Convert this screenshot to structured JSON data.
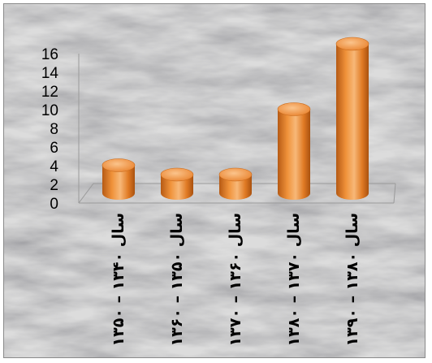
{
  "chart_data": {
    "type": "bar",
    "style": "3d-cylinder",
    "categories": [
      "سال ۱۳۴۰ – ۱۳۵۰",
      "سال ۱۳۵۰ – ۱۳۶۰",
      "سال ۱۳۶۰ – ۱۳۷۰",
      "سال ۱۳۷۰ – ۱۳۸۰",
      "سال ۱۳۸۰ – ۱۳۹۰"
    ],
    "values": [
      3,
      2,
      2,
      9,
      16
    ],
    "ylim": [
      0,
      16
    ],
    "yticks": [
      "0",
      "2",
      "4",
      "6",
      "8",
      "10",
      "12",
      "14",
      "16"
    ],
    "grid": false,
    "legend": "none",
    "colors": {
      "bar": "#e8802a",
      "bar_light": "#f7b878",
      "bar_dark": "#b65a14",
      "background": "#d9d9d9"
    }
  }
}
